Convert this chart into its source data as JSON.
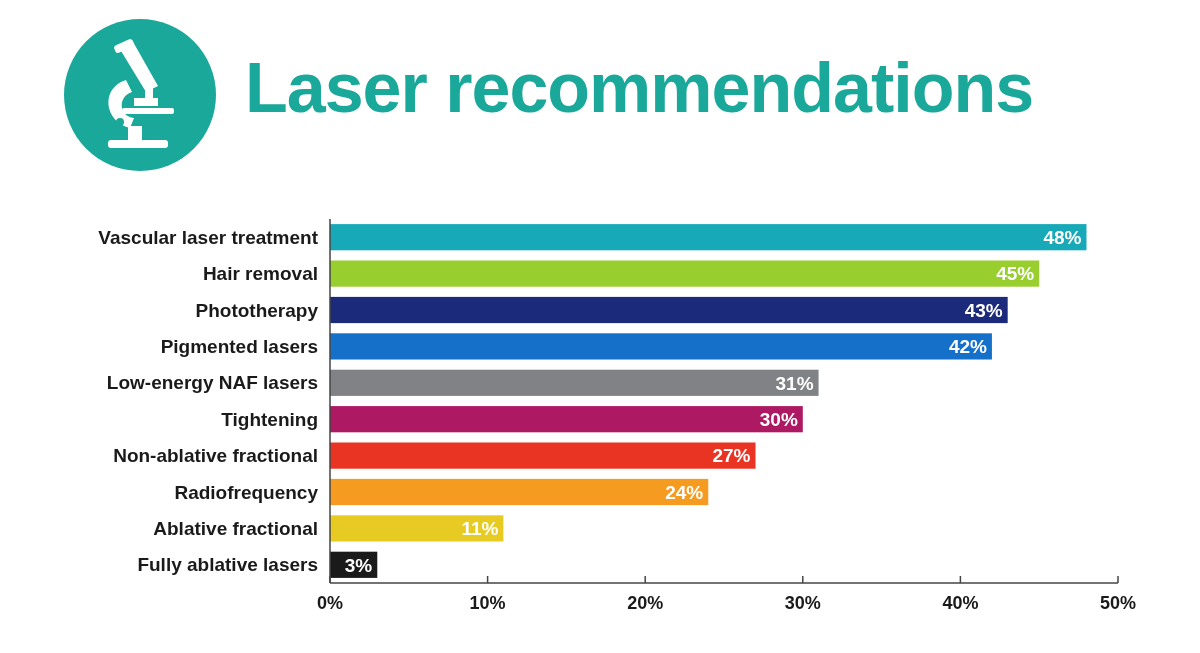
{
  "chart_data": {
    "type": "bar",
    "orientation": "horizontal",
    "title": "Laser recommendations",
    "categories": [
      "Vascular laser treatment",
      "Hair removal",
      "Phototherapy",
      "Pigmented lasers",
      "Low-energy NAF lasers",
      "Tightening",
      "Non-ablative fractional",
      "Radiofrequency",
      "Ablative fractional",
      "Fully ablative lasers"
    ],
    "values": [
      48,
      45,
      43,
      42,
      31,
      30,
      27,
      24,
      11,
      3
    ],
    "colors": [
      "#17a9b8",
      "#98cf2f",
      "#1b2a7a",
      "#1570c9",
      "#808285",
      "#ad1a63",
      "#e93323",
      "#f59c20",
      "#e8cb22",
      "#1a1a1a"
    ],
    "value_labels": [
      "48%",
      "45%",
      "43%",
      "42%",
      "31%",
      "30%",
      "27%",
      "24%",
      "11%",
      "3%"
    ],
    "xlim": [
      0,
      50
    ],
    "xticks": [
      {
        "value": 0,
        "label": "0%"
      },
      {
        "value": 10,
        "label": "10%"
      },
      {
        "value": 20,
        "label": "20%"
      },
      {
        "value": 30,
        "label": "30%"
      },
      {
        "value": 40,
        "label": "40%"
      },
      {
        "value": 50,
        "label": "50%"
      }
    ]
  }
}
